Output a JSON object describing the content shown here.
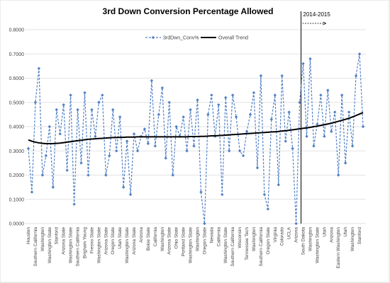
{
  "chart_data": {
    "type": "line",
    "title": "3rd Down Conversion  Percentage Allowed",
    "categories": [
      "Houston",
      null,
      "Southern California",
      null,
      "Washington",
      null,
      "Washington State",
      null,
      "Stanford",
      null,
      "Arizona State",
      null,
      "Washington State",
      null,
      "Southern California",
      null,
      "Brigham Young",
      null,
      "Fresno State",
      null,
      "Washington State",
      null,
      "Arizona State",
      null,
      "Oregon State",
      null,
      "Utah State",
      null,
      "Washington State",
      null,
      "Arizona State",
      null,
      "Arizona",
      null,
      "Boise State",
      null,
      "California",
      null,
      "Washington",
      null,
      "Arizona State",
      null,
      "Ohio State",
      null,
      "Portland State",
      null,
      "Washington State",
      null,
      "Washington",
      null,
      "Oregon State",
      null,
      "Nevada",
      null,
      "California",
      null,
      "Washington State",
      null,
      "Southern California",
      null,
      "Wisconsin",
      null,
      "Tennessee Tech",
      null,
      "Washington",
      null,
      "Southern California",
      null,
      "Oregon State",
      null,
      "Virginia",
      null,
      "Colorado",
      null,
      "UCLA",
      null,
      "Arizona",
      null,
      "South Dakota",
      null,
      "Washington",
      null,
      "Washington State",
      null,
      "Utah",
      null,
      "Arizona",
      null,
      "Eastern Washington",
      null,
      "Utah",
      null,
      "Washington",
      null,
      "Stanford",
      null
    ],
    "series": [
      {
        "name": "3rdDwn_Conv%",
        "color": "#4f7fc4",
        "values": [
          0.31,
          0.13,
          0.5,
          0.64,
          0.2,
          0.28,
          0.4,
          0.15,
          0.47,
          0.37,
          0.49,
          0.22,
          0.53,
          0.08,
          0.47,
          0.25,
          0.54,
          0.2,
          0.47,
          0.36,
          0.5,
          0.53,
          0.2,
          0.28,
          0.47,
          0.3,
          0.44,
          0.15,
          0.34,
          0.12,
          0.37,
          0.3,
          0.36,
          0.39,
          0.33,
          0.59,
          0.32,
          0.45,
          0.56,
          0.27,
          0.5,
          0.2,
          0.4,
          0.36,
          0.44,
          0.3,
          0.47,
          0.32,
          0.51,
          0.13,
          0.0,
          0.45,
          0.53,
          0.36,
          0.49,
          0.12,
          0.52,
          0.3,
          0.53,
          0.44,
          0.3,
          0.28,
          0.38,
          0.45,
          0.54,
          0.23,
          0.61,
          0.12,
          0.06,
          0.43,
          0.53,
          0.16,
          0.61,
          0.34,
          0.46,
          0.31,
          0.0,
          0.5,
          0.66,
          0.36,
          0.68,
          0.32,
          0.41,
          0.53,
          0.36,
          0.55,
          0.38,
          0.46,
          0.2,
          0.53,
          0.25,
          0.46,
          0.32,
          0.61,
          0.7,
          0.4
        ]
      },
      {
        "name": "Overall Trend",
        "color": "#000000",
        "values": [
          0.345,
          0.34,
          0.336,
          0.333,
          0.331,
          0.33,
          0.33,
          0.33,
          0.331,
          0.332,
          0.334,
          0.336,
          0.338,
          0.34,
          0.342,
          0.344,
          0.346,
          0.348,
          0.349,
          0.35,
          0.351,
          0.352,
          0.353,
          0.354,
          0.355,
          0.355,
          0.356,
          0.356,
          0.357,
          0.357,
          0.357,
          0.358,
          0.358,
          0.358,
          0.358,
          0.358,
          0.358,
          0.358,
          0.358,
          0.358,
          0.358,
          0.358,
          0.358,
          0.358,
          0.358,
          0.358,
          0.359,
          0.359,
          0.359,
          0.36,
          0.36,
          0.361,
          0.362,
          0.362,
          0.363,
          0.364,
          0.365,
          0.366,
          0.367,
          0.368,
          0.369,
          0.37,
          0.371,
          0.372,
          0.373,
          0.374,
          0.375,
          0.376,
          0.377,
          0.378,
          0.379,
          0.38,
          0.382,
          0.383,
          0.385,
          0.387,
          0.389,
          0.391,
          0.393,
          0.395,
          0.397,
          0.4,
          0.402,
          0.405,
          0.408,
          0.411,
          0.414,
          0.418,
          0.422,
          0.426,
          0.43,
          0.435,
          0.44,
          0.446,
          0.452,
          0.458
        ]
      }
    ],
    "ylim": [
      0,
      0.8
    ],
    "yticks": [
      {
        "value": 0,
        "label": "0.0000"
      },
      {
        "value": 0.1,
        "label": "0.1000"
      },
      {
        "value": 0.2,
        "label": "0.2000"
      },
      {
        "value": 0.3,
        "label": "0.3000"
      },
      {
        "value": 0.4,
        "label": "0.4000"
      },
      {
        "value": 0.5,
        "label": "0.5000"
      },
      {
        "value": 0.6,
        "label": "0.6000"
      },
      {
        "value": 0.7,
        "label": "0.7000"
      },
      {
        "value": 0.8,
        "label": "0.8000"
      }
    ],
    "grid": true,
    "legend": "top",
    "annotation": {
      "label": "2014-2015",
      "x": "South Dakota"
    }
  }
}
